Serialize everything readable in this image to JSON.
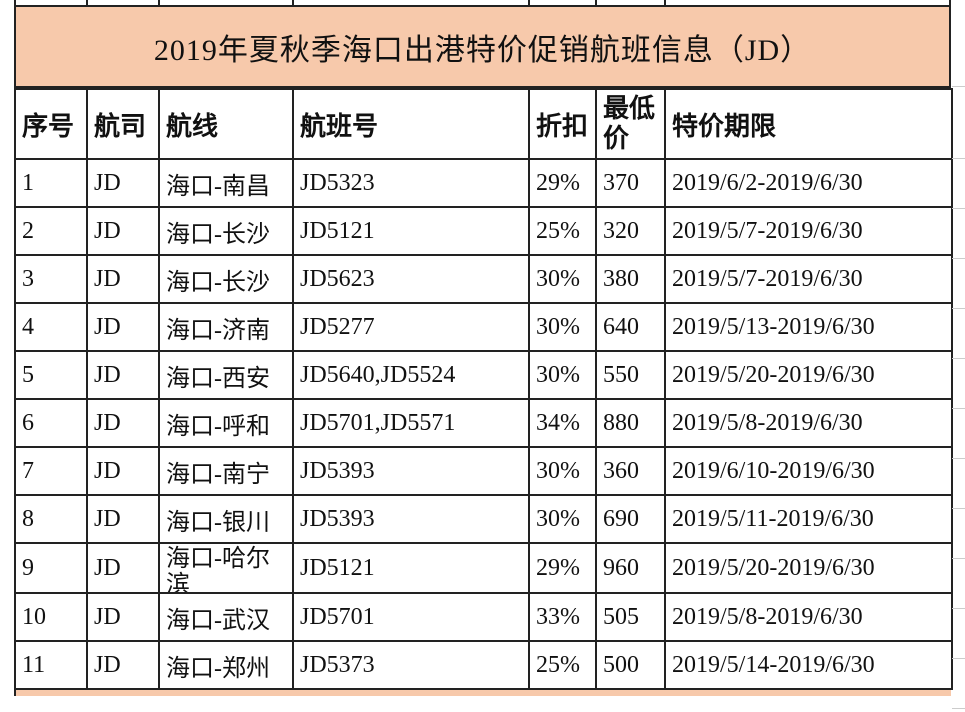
{
  "title": "2019年夏秋季海口出港特价促销航班信息（JD）",
  "header": {
    "seq": "序号",
    "airline": "航司",
    "route": "航线",
    "flight": "航班号",
    "discount": "折扣",
    "min_price": "最低价",
    "period": "特价期限"
  },
  "rows": [
    {
      "seq": "1",
      "airline": "JD",
      "route": "海口-南昌",
      "flight": "JD5323",
      "discount": "29%",
      "min_price": "370",
      "period": "2019/6/2-2019/6/30"
    },
    {
      "seq": "2",
      "airline": "JD",
      "route": "海口-长沙",
      "flight": "JD5121",
      "discount": "25%",
      "min_price": "320",
      "period": "2019/5/7-2019/6/30"
    },
    {
      "seq": "3",
      "airline": "JD",
      "route": "海口-长沙",
      "flight": "JD5623",
      "discount": "30%",
      "min_price": "380",
      "period": "2019/5/7-2019/6/30"
    },
    {
      "seq": "4",
      "airline": "JD",
      "route": "海口-济南",
      "flight": "JD5277",
      "discount": "30%",
      "min_price": "640",
      "period": "2019/5/13-2019/6/30"
    },
    {
      "seq": "5",
      "airline": "JD",
      "route": "海口-西安",
      "flight": "JD5640,JD5524",
      "discount": "30%",
      "min_price": "550",
      "period": "2019/5/20-2019/6/30"
    },
    {
      "seq": "6",
      "airline": "JD",
      "route": "海口-呼和",
      "flight": "JD5701,JD5571",
      "discount": "34%",
      "min_price": "880",
      "period": "2019/5/8-2019/6/30"
    },
    {
      "seq": "7",
      "airline": "JD",
      "route": "海口-南宁",
      "flight": "JD5393",
      "discount": "30%",
      "min_price": "360",
      "period": "2019/6/10-2019/6/30"
    },
    {
      "seq": "8",
      "airline": "JD",
      "route": "海口-银川",
      "flight": "JD5393",
      "discount": "30%",
      "min_price": "690",
      "period": "2019/5/11-2019/6/30"
    },
    {
      "seq": "9",
      "airline": "JD",
      "route": "海口-哈尔滨",
      "flight": "JD5121",
      "discount": "29%",
      "min_price": "960",
      "period": "2019/5/20-2019/6/30"
    },
    {
      "seq": "10",
      "airline": "JD",
      "route": "海口-武汉",
      "flight": "JD5701",
      "discount": "33%",
      "min_price": "505",
      "period": "2019/5/8-2019/6/30"
    },
    {
      "seq": "11",
      "airline": "JD",
      "route": "海口-郑州",
      "flight": "JD5373",
      "discount": "25%",
      "min_price": "500",
      "period": "2019/5/14-2019/6/30"
    }
  ],
  "colors": {
    "title_fill": "#f7c9ab",
    "border": "#222222"
  }
}
